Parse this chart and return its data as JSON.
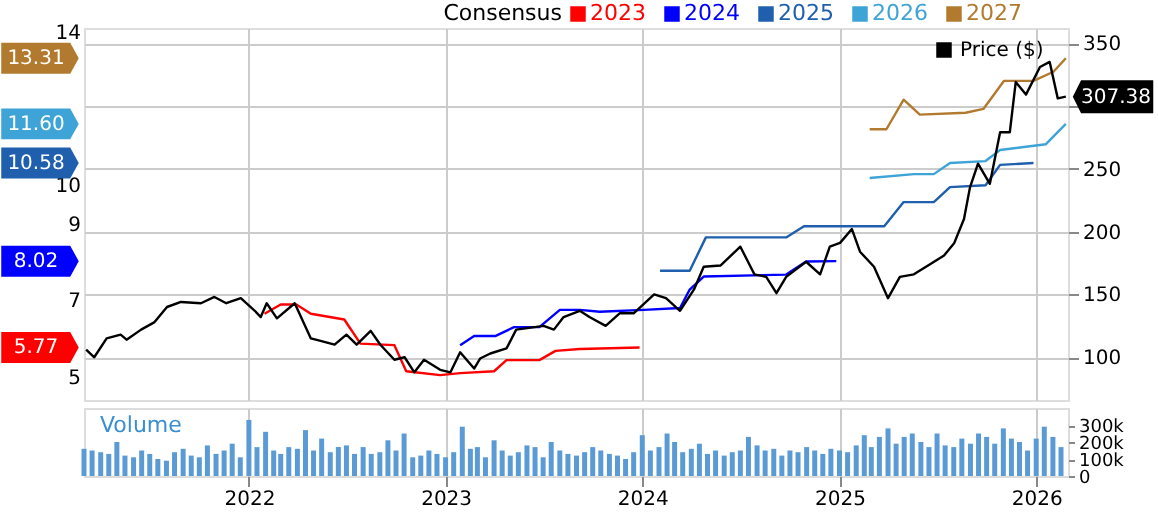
{
  "chart_data": [
    {
      "type": "line",
      "xlim": [
        "2021-03-01",
        "2026-03-01"
      ],
      "xticks": [
        "2022",
        "2023",
        "2024",
        "2025",
        "2026"
      ],
      "ylim": [
        4.4,
        14.1
      ],
      "yticks": [
        5,
        7,
        9,
        10,
        14
      ],
      "y2lim": [
        66,
        362
      ],
      "y2ticks": [
        100,
        150,
        200,
        250,
        {
          "value": 300,
          "label": null
        },
        350
      ],
      "grid": true,
      "tick_labels": "y",
      "legend": "top",
      "legend_title": "Consensus",
      "series": [
        {
          "name": "Price ($)",
          "color": "#000000",
          "axis": "y2",
          "type": "line",
          "x": [
            "2021-03-05",
            "2021-03-20",
            "2021-04-12",
            "2021-05-08",
            "2021-05-19",
            "2021-06-15",
            "2021-07-10",
            "2021-08-02",
            "2021-08-28",
            "2021-10-04",
            "2021-10-29",
            "2021-11-20",
            "2021-12-17",
            "2022-01-12",
            "2022-01-23",
            "2022-02-03",
            "2022-02-22",
            "2022-03-27",
            "2022-04-26",
            "2022-05-14",
            "2022-06-09",
            "2022-07-01",
            "2022-07-20",
            "2022-08-15",
            "2022-09-02",
            "2022-09-28",
            "2022-10-17",
            "2022-11-04",
            "2022-11-22",
            "2022-12-22",
            "2023-01-10",
            "2023-01-28",
            "2023-02-23",
            "2023-03-06",
            "2023-03-25",
            "2023-04-24",
            "2023-05-12",
            "2023-06-15",
            "2023-07-02",
            "2023-07-21",
            "2023-08-08",
            "2023-09-07",
            "2023-09-25",
            "2023-10-25",
            "2023-11-20",
            "2023-12-16",
            "2024-01-23",
            "2024-02-14",
            "2024-03-11",
            "2024-04-06",
            "2024-04-24",
            "2024-05-25",
            "2024-07-01",
            "2024-07-27",
            "2024-08-18",
            "2024-09-06",
            "2024-09-24",
            "2024-10-31",
            "2024-11-26",
            "2024-12-14",
            "2025-01-02",
            "2025-01-24",
            "2025-02-08",
            "2025-03-06",
            "2025-04-01",
            "2025-04-23",
            "2025-05-19",
            "2025-06-18",
            "2025-07-14",
            "2025-08-02",
            "2025-08-20",
            "2025-08-31",
            "2025-09-15",
            "2025-10-07",
            "2025-10-26",
            "2025-11-13",
            "2025-11-24",
            "2025-12-13",
            "2026-01-08",
            "2026-01-26",
            "2026-02-10",
            "2026-02-25"
          ],
          "values": [
            106,
            100,
            115,
            118,
            114,
            122,
            128,
            140,
            144,
            143,
            148,
            143,
            147,
            137,
            132,
            143,
            131,
            143,
            115,
            113,
            110,
            118,
            110,
            121,
            110,
            98,
            100,
            88,
            98,
            90,
            88,
            104,
            91,
            99,
            103,
            107,
            122,
            124,
            125,
            122,
            132,
            137,
            132,
            125,
            135,
            135,
            150,
            147,
            137,
            154,
            172,
            173,
            188,
            166,
            164,
            151,
            164,
            176,
            166,
            188,
            191,
            202,
            184,
            172,
            147,
            164,
            166,
            174,
            181,
            191,
            210,
            235,
            254,
            238,
            279,
            279,
            319,
            309,
            331,
            335,
            306,
            307.38
          ],
          "value_labels": [
            null,
            null,
            null,
            null,
            null,
            null,
            null,
            null,
            null,
            null,
            null,
            null,
            null,
            null,
            null,
            null,
            null,
            null,
            null,
            null,
            null,
            null,
            null,
            null,
            null,
            null,
            null,
            null,
            null,
            null,
            null,
            null,
            null,
            null,
            null,
            null,
            null,
            null,
            null,
            null,
            null,
            null,
            null,
            null,
            null,
            null,
            null,
            null,
            null,
            null,
            null,
            null,
            null,
            null,
            null,
            null,
            null,
            null,
            null,
            null,
            null,
            null,
            null,
            null,
            null,
            null,
            null,
            null,
            null,
            null,
            null,
            null,
            null,
            null,
            null,
            null,
            null,
            null,
            null,
            null,
            null,
            "307.38"
          ]
        },
        {
          "name": "2023",
          "color": "#ff0000",
          "type": "line",
          "x": [
            "2022-01-30",
            "2022-03-01",
            "2022-03-30",
            "2022-04-26",
            "2022-06-27",
            "2022-07-27",
            "2022-09-28",
            "2022-10-20",
            "2022-12-22",
            "2023-01-28",
            "2023-04-01",
            "2023-04-24",
            "2023-06-24",
            "2023-07-24",
            "2023-09-07",
            "2023-12-27"
          ],
          "values": [
            6.65,
            6.89,
            6.89,
            6.65,
            6.5,
            5.87,
            5.83,
            5.15,
            5.05,
            5.1,
            5.15,
            5.44,
            5.44,
            5.68,
            5.73,
            5.77
          ]
        },
        {
          "name": "2024",
          "color": "#0000ff",
          "type": "line",
          "x": [
            "2023-01-28",
            "2023-02-23",
            "2023-04-04",
            "2023-05-08",
            "2023-06-24",
            "2023-08-01",
            "2023-09-07",
            "2023-10-14",
            "2024-01-04",
            "2024-03-11",
            "2024-03-29",
            "2024-04-24",
            "2024-09-24",
            "2024-10-31",
            "2024-12-26"
          ],
          "values": [
            5.83,
            6.07,
            6.07,
            6.3,
            6.3,
            6.75,
            6.75,
            6.7,
            6.75,
            6.8,
            7.28,
            7.62,
            7.67,
            8.01,
            8.02
          ]
        },
        {
          "name": "2025",
          "color": "#1f5fae",
          "type": "line",
          "x": [
            "2024-02-03",
            "2024-03-29",
            "2024-04-28",
            "2024-09-24",
            "2024-10-27",
            "2025-03-25",
            "2025-04-30",
            "2025-06-25",
            "2025-07-25",
            "2025-09-29",
            "2025-10-26",
            "2025-12-27"
          ],
          "values": [
            7.77,
            7.77,
            8.64,
            8.64,
            8.93,
            8.93,
            9.56,
            9.56,
            9.95,
            10.0,
            10.53,
            10.58
          ]
        },
        {
          "name": "2026",
          "color": "#3ea3d6",
          "type": "line",
          "x": [
            "2025-02-26",
            "2025-05-19",
            "2025-06-25",
            "2025-07-25",
            "2025-09-29",
            "2025-10-26",
            "2026-01-19",
            "2026-02-25"
          ],
          "values": [
            10.19,
            10.29,
            10.29,
            10.58,
            10.63,
            10.92,
            11.07,
            11.6
          ]
        },
        {
          "name": "2027",
          "color": "#b27a2e",
          "type": "line",
          "x": [
            "2025-02-26",
            "2025-03-29",
            "2025-04-30",
            "2025-05-30",
            "2025-08-23",
            "2025-09-25",
            "2025-11-02",
            "2025-12-27",
            "2026-02-02",
            "2026-02-25"
          ],
          "values": [
            11.46,
            11.46,
            12.23,
            11.84,
            11.89,
            11.99,
            12.72,
            12.72,
            12.96,
            13.31
          ]
        }
      ],
      "annotations": [
        "5.77",
        "8.02",
        "10.58",
        "11.60",
        "13.31"
      ]
    },
    {
      "type": "bar",
      "title": "Volume",
      "xlim": [
        "2021-03-01",
        "2026-03-01"
      ],
      "xticks": [
        "2022",
        "2023",
        "2024",
        "2025",
        "2026"
      ],
      "ylim": [
        0,
        400000
      ],
      "yticks": [
        0,
        {
          "value": 100000,
          "label": "100k"
        },
        {
          "value": 200000,
          "label": "200k"
        },
        {
          "value": 300000,
          "label": "300k"
        }
      ],
      "grid": "x",
      "x": [
        "2021-03-01",
        "2021-03-16",
        "2021-04-01",
        "2021-04-16",
        "2021-05-01",
        "2021-05-16",
        "2021-06-01",
        "2021-06-16",
        "2021-07-01",
        "2021-07-16",
        "2021-08-01",
        "2021-08-16",
        "2021-09-01",
        "2021-09-16",
        "2021-10-01",
        "2021-10-16",
        "2021-11-01",
        "2021-11-16",
        "2021-12-01",
        "2021-12-16",
        "2022-01-01",
        "2022-01-16",
        "2022-02-01",
        "2022-02-16",
        "2022-03-01",
        "2022-03-16",
        "2022-04-01",
        "2022-04-16",
        "2022-05-01",
        "2022-05-16",
        "2022-06-01",
        "2022-06-16",
        "2022-07-01",
        "2022-07-16",
        "2022-08-01",
        "2022-08-16",
        "2022-09-01",
        "2022-09-16",
        "2022-10-01",
        "2022-10-16",
        "2022-11-01",
        "2022-11-16",
        "2022-12-01",
        "2022-12-16",
        "2023-01-01",
        "2023-01-16",
        "2023-02-01",
        "2023-02-16",
        "2023-03-01",
        "2023-03-16",
        "2023-04-01",
        "2023-04-16",
        "2023-05-01",
        "2023-05-16",
        "2023-06-01",
        "2023-06-16",
        "2023-07-01",
        "2023-07-16",
        "2023-08-01",
        "2023-08-16",
        "2023-09-01",
        "2023-09-16",
        "2023-10-01",
        "2023-10-16",
        "2023-11-01",
        "2023-11-16",
        "2023-12-01",
        "2023-12-16",
        "2024-01-01",
        "2024-01-16",
        "2024-02-01",
        "2024-02-16",
        "2024-03-01",
        "2024-03-16",
        "2024-04-01",
        "2024-04-16",
        "2024-05-01",
        "2024-05-16",
        "2024-06-01",
        "2024-06-16",
        "2024-07-01",
        "2024-07-16",
        "2024-08-01",
        "2024-08-16",
        "2024-09-01",
        "2024-09-16",
        "2024-10-01",
        "2024-10-16",
        "2024-11-01",
        "2024-11-16",
        "2024-12-01",
        "2024-12-16",
        "2025-01-01",
        "2025-01-16",
        "2025-02-01",
        "2025-02-16",
        "2025-03-01",
        "2025-03-16",
        "2025-04-01",
        "2025-04-16",
        "2025-05-01",
        "2025-05-16",
        "2025-06-01",
        "2025-06-16",
        "2025-07-01",
        "2025-07-16",
        "2025-08-01",
        "2025-08-16",
        "2025-09-01",
        "2025-09-16",
        "2025-10-01",
        "2025-10-16",
        "2025-11-01",
        "2025-11-16",
        "2025-12-01",
        "2025-12-16",
        "2026-01-01",
        "2026-01-16",
        "2026-02-01",
        "2026-02-16"
      ],
      "series": [
        {
          "color": "#5b9bd5",
          "values": [
            160000,
            150000,
            140000,
            130000,
            200000,
            120000,
            110000,
            150000,
            130000,
            100000,
            90000,
            140000,
            160000,
            120000,
            110000,
            180000,
            130000,
            150000,
            190000,
            110000,
            330000,
            170000,
            260000,
            150000,
            130000,
            170000,
            160000,
            270000,
            150000,
            220000,
            140000,
            170000,
            180000,
            130000,
            170000,
            130000,
            140000,
            210000,
            150000,
            250000,
            110000,
            120000,
            150000,
            130000,
            110000,
            140000,
            290000,
            160000,
            170000,
            110000,
            210000,
            150000,
            120000,
            140000,
            180000,
            170000,
            110000,
            200000,
            150000,
            130000,
            120000,
            140000,
            170000,
            150000,
            130000,
            120000,
            100000,
            140000,
            240000,
            150000,
            170000,
            250000,
            200000,
            140000,
            160000,
            190000,
            130000,
            150000,
            120000,
            140000,
            150000,
            230000,
            180000,
            150000,
            160000,
            120000,
            150000,
            140000,
            170000,
            150000,
            130000,
            160000,
            150000,
            140000,
            180000,
            240000,
            170000,
            230000,
            280000,
            190000,
            230000,
            250000,
            200000,
            170000,
            250000,
            180000,
            170000,
            220000,
            190000,
            250000,
            230000,
            190000,
            280000,
            220000,
            200000,
            150000,
            220000,
            290000,
            230000,
            170000
          ]
        }
      ]
    }
  ]
}
